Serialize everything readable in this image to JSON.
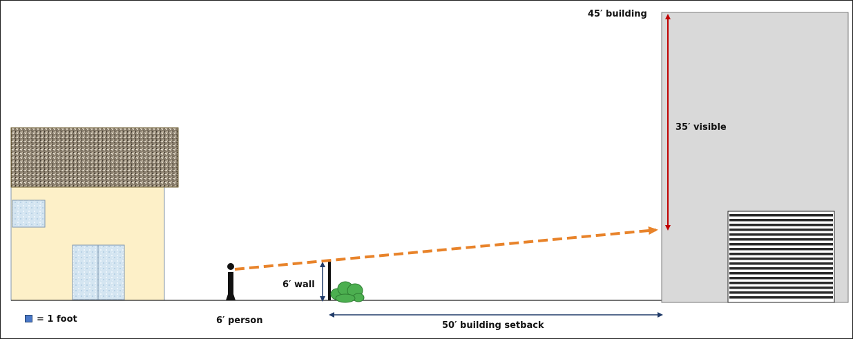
{
  "labels": {
    "building_height": "45′ building",
    "visible_height": "35′ visible",
    "wall": "6′ wall",
    "person": "6′ person",
    "setback": "50′ building setback",
    "legend": "= 1 foot"
  },
  "colors": {
    "sight_line": "#e8832a",
    "visible_arrow": "#c00000",
    "dimension_arrow": "#1f3a68",
    "building_fill": "#d9d9d9",
    "house_wall": "#fdf0c8",
    "house_roof": "#8a7f6e",
    "window_glass": "#cfe1ee",
    "shrub": "#4caf50",
    "legend_square": "#4a78c8"
  },
  "icons": {
    "legend_marker": "blue-square-icon"
  }
}
